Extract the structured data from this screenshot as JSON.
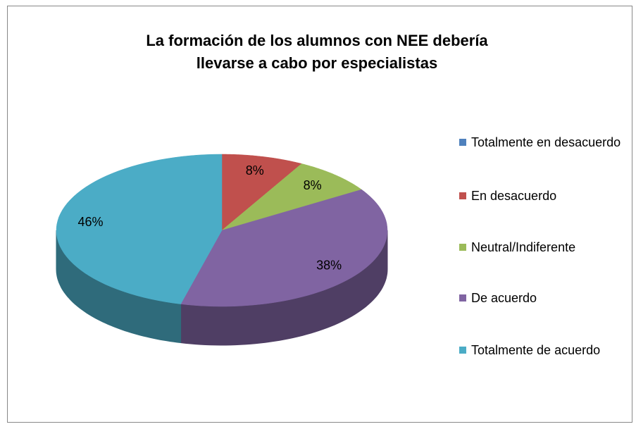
{
  "chart_data": {
    "type": "pie",
    "title": "La formación de los alumnos con NEE debería llevarse a cabo por especialistas",
    "categories": [
      "Totalmente en desacuerdo",
      "En desacuerdo",
      "Neutral/Indiferente",
      "De acuerdo",
      "Totalmente de acuerdo"
    ],
    "values": [
      0,
      8,
      8,
      38,
      46
    ],
    "value_labels": [
      null,
      "8%",
      "8%",
      "38%",
      "46%"
    ],
    "colors": [
      "#4f81bd",
      "#c0504d",
      "#9bbb59",
      "#8064a2",
      "#4bacc6"
    ],
    "legend": "right"
  }
}
